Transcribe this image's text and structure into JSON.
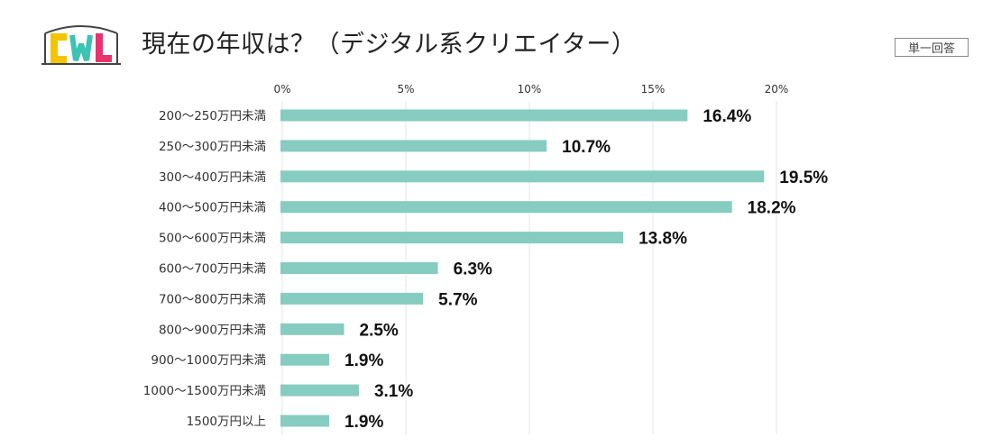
{
  "header": {
    "title": "現在の年収は？（デジタル系クリエイター）",
    "badge": "単一回答",
    "logo_text": "CWL"
  },
  "colors": {
    "bar": "#86ccc0",
    "grid": "#e6e6e6",
    "logo_yellow": "#f5c400",
    "logo_teal": "#3cc3b3",
    "logo_pink": "#e8336f",
    "logo_outline": "#444444"
  },
  "chart_data": {
    "type": "bar",
    "orientation": "horizontal",
    "categories": [
      "200～250万円未満",
      "250～300万円未満",
      "300～400万円未満",
      "400～500万円未満",
      "500～600万円未満",
      "600～700万円未満",
      "700～800万円未満",
      "800～900万円未満",
      "900～1000万円未満",
      "1000～1500万円未満",
      "1500万円以上"
    ],
    "values": [
      16.4,
      10.7,
      19.5,
      18.2,
      13.8,
      6.3,
      5.7,
      2.5,
      1.9,
      3.1,
      1.9
    ],
    "value_labels": [
      "16.4%",
      "10.7%",
      "19.5%",
      "18.2%",
      "13.8%",
      "6.3%",
      "5.7%",
      "2.5%",
      "1.9%",
      "3.1%",
      "1.9%"
    ],
    "xlim": [
      0,
      20
    ],
    "x_ticks": [
      0,
      5,
      10,
      15,
      20
    ],
    "x_tick_labels": [
      "0%",
      "5%",
      "10%",
      "15%",
      "20%"
    ],
    "x_axis_position": "top",
    "grid": true,
    "legend": "none"
  }
}
